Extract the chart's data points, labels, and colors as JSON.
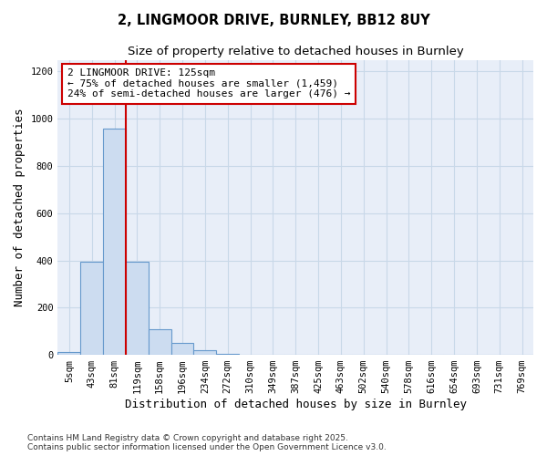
{
  "title1": "2, LINGMOOR DRIVE, BURNLEY, BB12 8UY",
  "title2": "Size of property relative to detached houses in Burnley",
  "xlabel": "Distribution of detached houses by size in Burnley",
  "ylabel": "Number of detached properties",
  "categories": [
    "5sqm",
    "43sqm",
    "81sqm",
    "119sqm",
    "158sqm",
    "196sqm",
    "234sqm",
    "272sqm",
    "310sqm",
    "349sqm",
    "387sqm",
    "425sqm",
    "463sqm",
    "502sqm",
    "540sqm",
    "578sqm",
    "616sqm",
    "654sqm",
    "693sqm",
    "731sqm",
    "769sqm"
  ],
  "values": [
    10,
    395,
    960,
    395,
    110,
    50,
    18,
    5,
    1,
    0,
    0,
    0,
    0,
    0,
    0,
    0,
    0,
    0,
    0,
    0,
    0
  ],
  "bar_color": "#ccdcf0",
  "bar_edge_color": "#6699cc",
  "grid_color": "#c8d8e8",
  "plot_bg_color": "#e8eef8",
  "figure_bg_color": "#ffffff",
  "vline_color": "#cc0000",
  "annotation_text": "2 LINGMOOR DRIVE: 125sqm\n← 75% of detached houses are smaller (1,459)\n24% of semi-detached houses are larger (476) →",
  "annotation_box_color": "#ffffff",
  "annotation_box_edge": "#cc0000",
  "ylim": [
    0,
    1250
  ],
  "yticks": [
    0,
    200,
    400,
    600,
    800,
    1000,
    1200
  ],
  "footer1": "Contains HM Land Registry data © Crown copyright and database right 2025.",
  "footer2": "Contains public sector information licensed under the Open Government Licence v3.0.",
  "title_fontsize": 10.5,
  "subtitle_fontsize": 9.5,
  "axis_label_fontsize": 9,
  "tick_fontsize": 7.5,
  "annot_fontsize": 8,
  "footer_fontsize": 6.5,
  "vline_bin_index": 3
}
